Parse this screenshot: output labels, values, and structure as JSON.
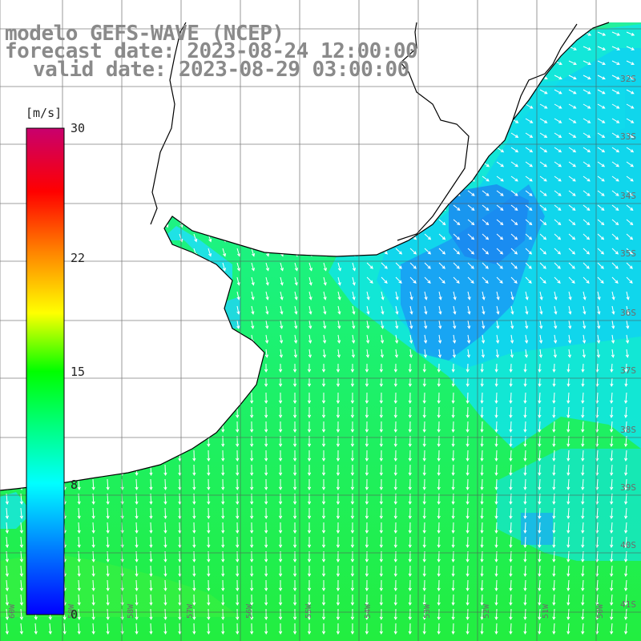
{
  "titles": {
    "line1": "modelo GEFS-WAVE (NCEP)",
    "line2": "forecast date: 2023-08-24 12:00:00",
    "line3": "valid date: 2023-08-29 03:00:00"
  },
  "colorbar": {
    "unit": "[m/s]",
    "ticks": [
      {
        "value": 30,
        "label": "30"
      },
      {
        "value": 22,
        "label": "22"
      },
      {
        "value": 15,
        "label": "15"
      },
      {
        "value": 8,
        "label": "8"
      },
      {
        "value": 0,
        "label": "0"
      }
    ],
    "min": 0,
    "max": 30,
    "stops": [
      "#0000ff",
      "#0078ff",
      "#00ffff",
      "#00ff00",
      "#ffff00",
      "#ff7f00",
      "#ff0000",
      "#c8006e"
    ]
  },
  "grid": {
    "lat_labels": [
      "32S",
      "33S",
      "34S",
      "35S",
      "36S",
      "37S",
      "38S",
      "39S",
      "40S",
      "41S"
    ],
    "lon_labels": [
      "60W",
      "59W",
      "58W",
      "57W",
      "56W",
      "55W",
      "54W",
      "53W",
      "52W",
      "51W",
      "50W"
    ]
  },
  "colors": {
    "land": "#ffffff",
    "coast": "#000000",
    "grid_line": "#555555",
    "arrows": "#ffffff"
  }
}
